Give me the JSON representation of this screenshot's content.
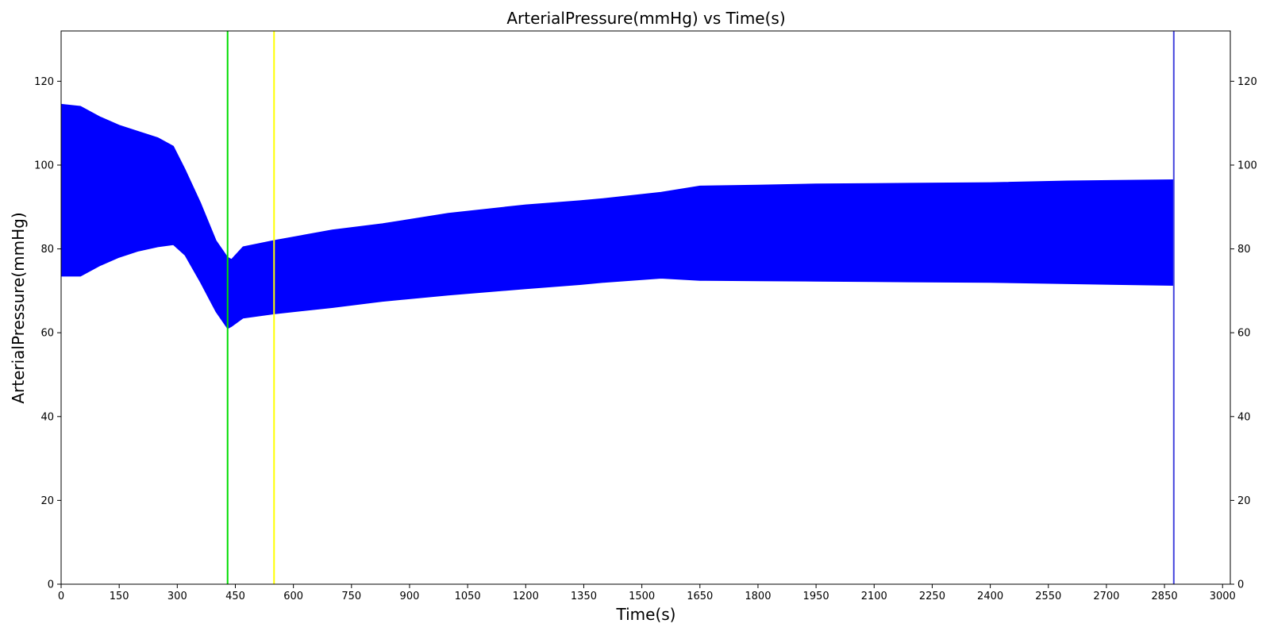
{
  "chart_data": {
    "type": "area",
    "title": "ArterialPressure(mmHg) vs Time(s)",
    "xlabel": "Time(s)",
    "ylabel": "ArterialPressure(mmHg)",
    "xlim": [
      0,
      3020
    ],
    "ylim": [
      0,
      132
    ],
    "xticks": [
      0,
      150,
      300,
      450,
      600,
      750,
      900,
      1050,
      1200,
      1350,
      1500,
      1650,
      1800,
      1950,
      2100,
      2250,
      2400,
      2550,
      2700,
      2850,
      3000
    ],
    "yticks": [
      0,
      20,
      40,
      60,
      80,
      100,
      120
    ],
    "right_axis_ticks": true,
    "grid": false,
    "series": [
      {
        "color": "#0000ff",
        "x": [
          0,
          50,
          100,
          150,
          200,
          250,
          290,
          320,
          360,
          400,
          430,
          440,
          470,
          550,
          700,
          830,
          1000,
          1200,
          1340,
          1400,
          1550,
          1650,
          1800,
          1950,
          2100,
          2400,
          2600,
          2874
        ],
        "max": [
          114.5,
          114,
          111.5,
          109.5,
          108,
          106.5,
          104.5,
          99,
          91,
          82,
          78,
          77.5,
          80.5,
          82,
          84.5,
          86,
          88.5,
          90.5,
          91.5,
          92,
          93.5,
          95,
          95.2,
          95.5,
          95.6,
          95.8,
          96.2,
          96.5
        ],
        "min": [
          73.5,
          73.5,
          76,
          78,
          79.5,
          80.5,
          81,
          78.5,
          72,
          65,
          61,
          61.5,
          63.5,
          64.5,
          66,
          67.5,
          69,
          70.5,
          71.5,
          72,
          73,
          72.5,
          72.4,
          72.3,
          72.2,
          72,
          71.7,
          71.3
        ]
      }
    ],
    "vertical_lines": [
      {
        "x": 430,
        "color": "#00dd00"
      },
      {
        "x": 550,
        "color": "#ffff00"
      },
      {
        "x": 2874,
        "color": "#4444dd"
      }
    ]
  }
}
